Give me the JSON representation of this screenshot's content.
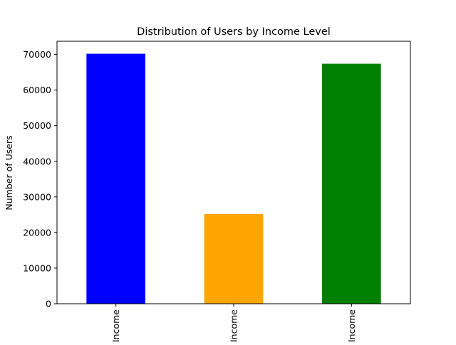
{
  "chart_data": {
    "type": "bar",
    "title": "Distribution of Users by Income Level",
    "xlabel": "",
    "ylabel": "Number of Users",
    "categories": [
      "Income",
      "Income",
      "Income"
    ],
    "values": [
      70200,
      25200,
      67400
    ],
    "colors": [
      "#0000ff",
      "#ffa500",
      "#008000"
    ],
    "ylim": [
      0,
      73710
    ],
    "yticks": [
      0,
      10000,
      20000,
      30000,
      40000,
      50000,
      60000,
      70000
    ],
    "grid": false,
    "legend": "none"
  }
}
